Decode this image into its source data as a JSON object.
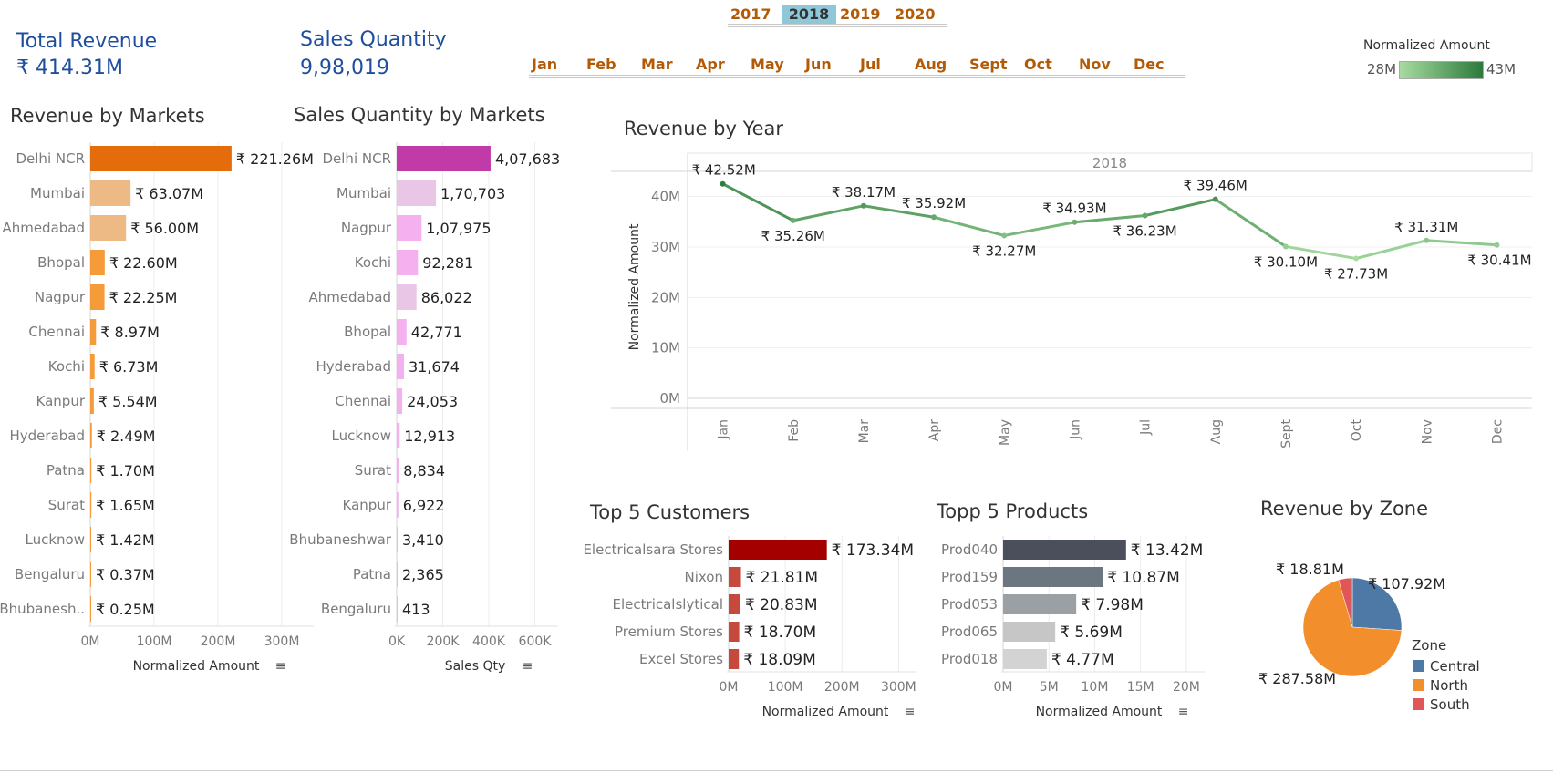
{
  "kpis": {
    "revenue_title": "Total Revenue",
    "revenue_value": "₹ 414.31M",
    "qty_title": "Sales Quantity",
    "qty_value": "9,98,019"
  },
  "filters": {
    "years": [
      "2017",
      "2018",
      "2019",
      "2020"
    ],
    "selected_year": "2018",
    "months": [
      "Jan",
      "Feb",
      "Mar",
      "Apr",
      "May",
      "Jun",
      "Jul",
      "Aug",
      "Sept",
      "Oct",
      "Nov",
      "Dec"
    ]
  },
  "legend": {
    "title": "Normalized Amount",
    "min_label": "28M",
    "max_label": "43M",
    "color_min": "#a8dba0",
    "color_max": "#2b7a3b"
  },
  "colors": {
    "revenue_markets_top": "#e46c0a",
    "revenue_markets_mid": "#f59b3a",
    "revenue_markets_light": "#edb985",
    "qty_top": "#c13ba8",
    "qty_mid": "#f5b0f0",
    "qty_light": "#e9c5e6",
    "customer_top": "#a50000",
    "customer_other": "#c54a3d",
    "zone_central": "#4e79a7",
    "zone_north": "#f28e2b",
    "zone_south": "#e15759"
  },
  "chart_data": [
    {
      "id": "revenue_by_markets",
      "type": "bar",
      "orientation": "horizontal",
      "title": "Revenue by Markets",
      "xlabel": "Normalized Amount",
      "xlim": [
        0,
        350
      ],
      "xticks": [
        "0M",
        "100M",
        "200M",
        "300M"
      ],
      "categories": [
        "Delhi NCR",
        "Mumbai",
        "Ahmedabad",
        "Bhopal",
        "Nagpur",
        "Chennai",
        "Kochi",
        "Kanpur",
        "Hyderabad",
        "Patna",
        "Surat",
        "Lucknow",
        "Bengaluru",
        "Bhubanesh.."
      ],
      "values": [
        221.26,
        63.07,
        56.0,
        22.6,
        22.25,
        8.97,
        6.73,
        5.54,
        2.49,
        1.7,
        1.65,
        1.42,
        0.37,
        0.25
      ],
      "value_labels": [
        "₹ 221.26M",
        "₹ 63.07M",
        "₹ 56.00M",
        "₹ 22.60M",
        "₹ 22.25M",
        "₹ 8.97M",
        "₹ 6.73M",
        "₹ 5.54M",
        "₹ 2.49M",
        "₹ 1.70M",
        "₹ 1.65M",
        "₹ 1.42M",
        "₹ 0.37M",
        "₹ 0.25M"
      ]
    },
    {
      "id": "qty_by_markets",
      "type": "bar",
      "orientation": "horizontal",
      "title": "Sales Quantity by Markets",
      "xlabel": "Sales Qty",
      "xlim": [
        0,
        700000
      ],
      "xticks": [
        "0K",
        "200K",
        "400K",
        "600K"
      ],
      "categories": [
        "Delhi NCR",
        "Mumbai",
        "Nagpur",
        "Kochi",
        "Ahmedabad",
        "Bhopal",
        "Hyderabad",
        "Chennai",
        "Lucknow",
        "Surat",
        "Kanpur",
        "Bhubaneshwar",
        "Patna",
        "Bengaluru"
      ],
      "values": [
        407683,
        170703,
        107975,
        92281,
        86022,
        42771,
        31674,
        24053,
        12913,
        8834,
        6922,
        3410,
        2365,
        413
      ],
      "value_labels": [
        "4,07,683",
        "1,70,703",
        "1,07,975",
        "92,281",
        "86,022",
        "42,771",
        "31,674",
        "24,053",
        "12,913",
        "8,834",
        "6,922",
        "3,410",
        "2,365",
        "413"
      ]
    },
    {
      "id": "revenue_by_year",
      "type": "line",
      "title": "Revenue by Year",
      "panel_label": "2018",
      "ylabel": "Normalized Amount",
      "ylim": [
        0,
        45
      ],
      "yticks": [
        "0M",
        "10M",
        "20M",
        "30M",
        "40M"
      ],
      "x": [
        "Jan",
        "Feb",
        "Mar",
        "Apr",
        "May",
        "Jun",
        "Jul",
        "Aug",
        "Sept",
        "Oct",
        "Nov",
        "Dec"
      ],
      "values": [
        42.52,
        35.26,
        38.17,
        35.92,
        32.27,
        34.93,
        36.23,
        39.46,
        30.1,
        27.73,
        31.31,
        30.41
      ],
      "value_labels": [
        "₹ 42.52M",
        "₹ 35.26M",
        "₹ 38.17M",
        "₹ 35.92M",
        "₹ 32.27M",
        "₹ 34.93M",
        "₹ 36.23M",
        "₹ 39.46M",
        "₹ 30.10M",
        "₹ 27.73M",
        "₹ 31.31M",
        "₹ 30.41M"
      ]
    },
    {
      "id": "top_customers",
      "type": "bar",
      "orientation": "horizontal",
      "title": "Top 5 Customers",
      "xlabel": "Normalized Amount",
      "xlim": [
        0,
        330
      ],
      "xticks": [
        "0M",
        "100M",
        "200M",
        "300M"
      ],
      "categories": [
        "Electricalsara Stores",
        "Nixon",
        "Electricalslytical",
        "Premium Stores",
        "Excel Stores"
      ],
      "values": [
        173.34,
        21.81,
        20.83,
        18.7,
        18.09
      ],
      "value_labels": [
        "₹ 173.34M",
        "₹ 21.81M",
        "₹ 20.83M",
        "₹ 18.70M",
        "₹ 18.09M"
      ]
    },
    {
      "id": "top_products",
      "type": "bar",
      "orientation": "horizontal",
      "title": "Topp 5 Products",
      "xlabel": "Normalized Amount",
      "xlim": [
        0,
        22
      ],
      "xticks": [
        "0M",
        "5M",
        "10M",
        "15M",
        "20M"
      ],
      "categories": [
        "Prod040",
        "Prod159",
        "Prod053",
        "Prod065",
        "Prod018"
      ],
      "values": [
        13.42,
        10.87,
        7.98,
        5.69,
        4.77
      ],
      "value_labels": [
        "₹ 13.42M",
        "₹ 10.87M",
        "₹ 7.98M",
        "₹ 5.69M",
        "₹ 4.77M"
      ],
      "bar_colors": [
        "#4b4f5c",
        "#6b7680",
        "#9aa0a3",
        "#c6c6c6",
        "#d3d3d3"
      ]
    },
    {
      "id": "revenue_by_zone",
      "type": "pie",
      "title": "Revenue by Zone",
      "legend_title": "Zone",
      "legend_position": "right",
      "categories": [
        "Central",
        "North",
        "South"
      ],
      "values": [
        107.92,
        287.58,
        18.81
      ],
      "value_labels": [
        "₹ 107.92M",
        "₹ 287.58M",
        "₹ 18.81M"
      ]
    }
  ]
}
